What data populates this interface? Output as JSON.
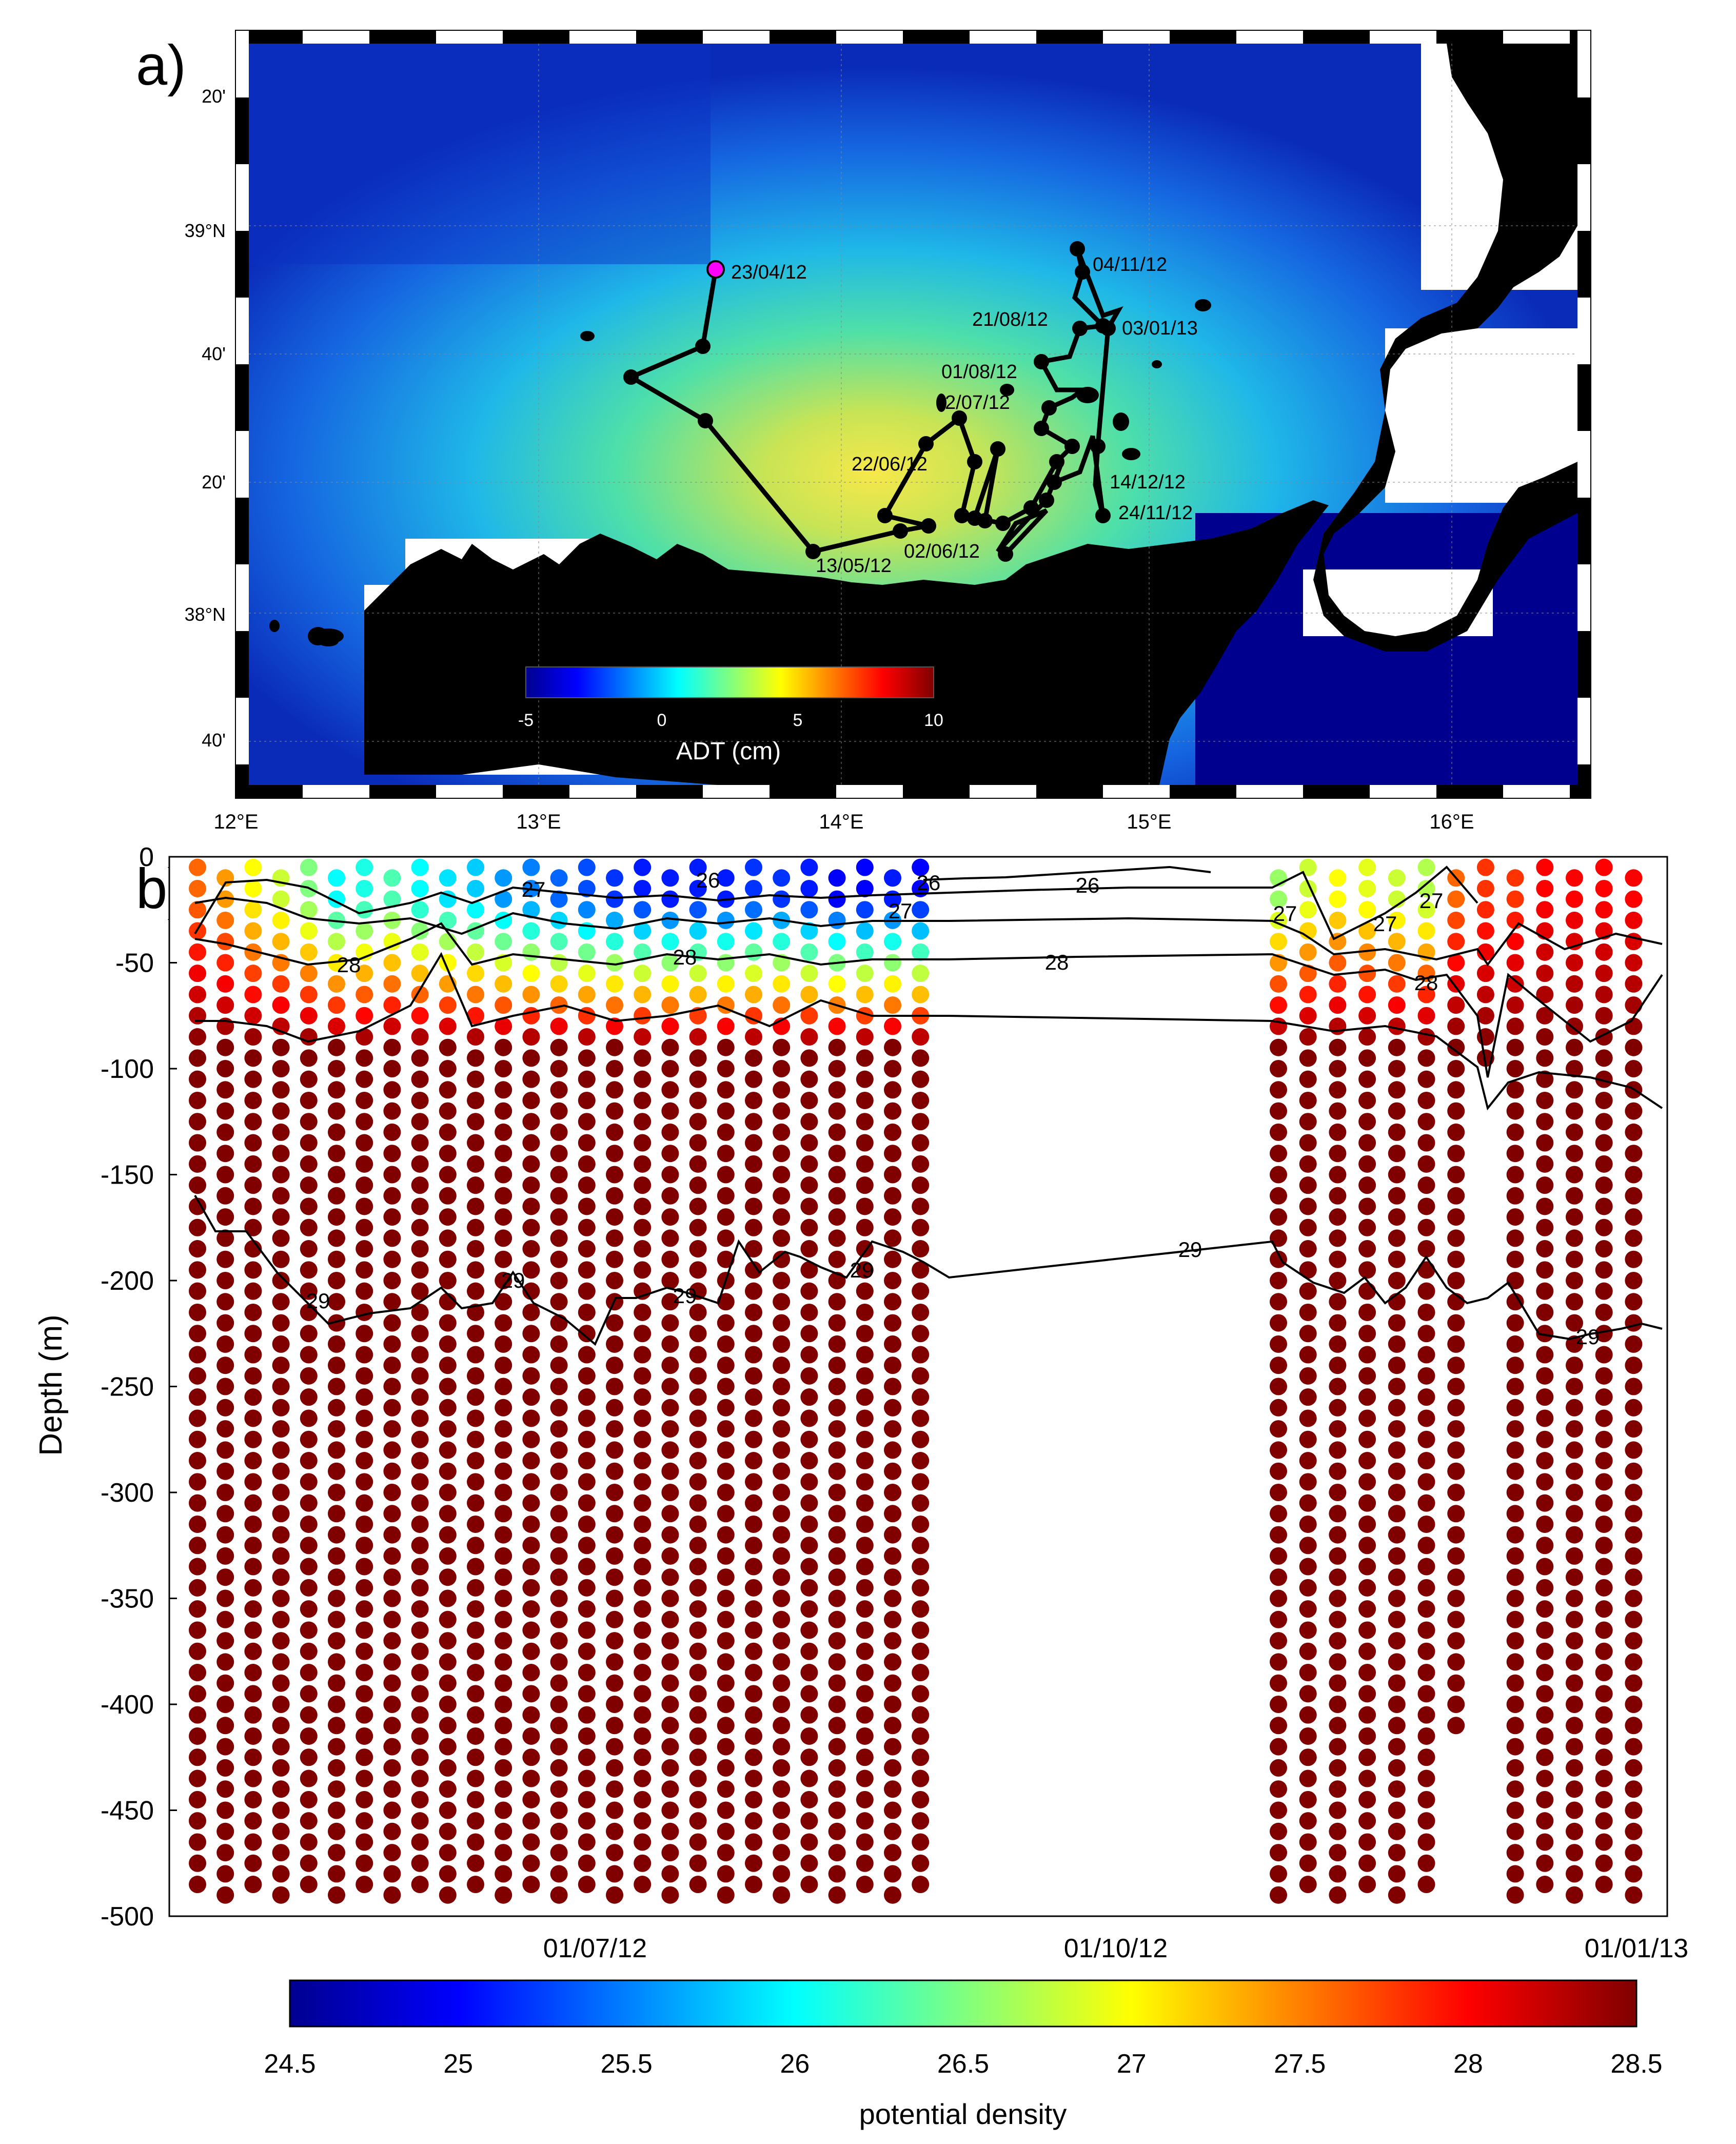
{
  "panel_a": {
    "label": "a)",
    "lon_ticks": [
      "12°E",
      "13°E",
      "14°E",
      "15°E",
      "16°E"
    ],
    "lat_ticks": [
      "20'",
      "39°N",
      "40'",
      "20'",
      "38°N",
      "40'"
    ],
    "colorbar": {
      "label": "ADT (cm)",
      "ticks": [
        "-5",
        "0",
        "5",
        "10"
      ]
    },
    "start_marker_color": "#ff00ff"
  },
  "chart_data": [
    {
      "type": "scatter",
      "title": "",
      "description_key": "panel_a",
      "xlim": [
        12.0,
        16.4
      ],
      "ylim": [
        37.55,
        39.45
      ],
      "xlabel": "",
      "ylabel": "",
      "series": [
        {
          "x": [
            13.58,
            13.55,
            13.3,
            13.58,
            13.9,
            14.12,
            14.25,
            14.45,
            14.55,
            14.68,
            14.75,
            14.82,
            14.85
          ],
          "y": [
            38.92,
            38.7,
            38.62,
            38.5,
            38.15,
            38.24,
            38.22,
            38.26,
            38.16,
            38.35,
            38.52,
            38.75,
            38.93
          ]
        }
      ],
      "annotations": [
        "23/04/12",
        "13/05/12",
        "22/06/12",
        "02/06/12",
        "2/07/12",
        "01/08/12",
        "21/08/12",
        "04/11/12",
        "03/01/13",
        "14/12/12",
        "24/11/12"
      ]
    },
    {
      "type": "scatter",
      "title": "",
      "xlabel": "",
      "ylabel": "Depth (m)",
      "ylim": [
        -500,
        0
      ],
      "yticks": [
        "0",
        "-50",
        "-100",
        "-150",
        "-200",
        "-250",
        "-300",
        "-350",
        "-400",
        "-450",
        "-500"
      ],
      "xticks": [
        "01/07/12",
        "01/10/12",
        "01/01/13"
      ],
      "colorbar": {
        "label": "potential density",
        "ticks": [
          "24.5",
          "25",
          "25.5",
          "26",
          "26.5",
          "27",
          "27.5",
          "28",
          "28.5"
        ],
        "range": [
          24.5,
          28.5
        ]
      },
      "contour_labels": [
        "26",
        "26",
        "26",
        "27",
        "27",
        "27",
        "27",
        "27",
        "28",
        "28",
        "28",
        "28",
        "29",
        "29",
        "29",
        "29",
        "29",
        "29"
      ],
      "series": [
        {
          "name": "",
          "mixed_layer_density": [
            27.6,
            27.4,
            27.0,
            26.8,
            26.5,
            26.0,
            26.1,
            26.3,
            26.0,
            25.9,
            25.8,
            25.6,
            25.5,
            25.4,
            25.3,
            25.2,
            25.1,
            25.1,
            25.1,
            25.1,
            25.2,
            25.2,
            25.1,
            25.0,
            25.0,
            25.1,
            25.0,
            26.6,
            26.8,
            27.0,
            26.9,
            26.8,
            26.7,
            27.6,
            27.8,
            27.8,
            28.0,
            28.0,
            28.0,
            28.0
          ]
        }
      ]
    }
  ]
}
